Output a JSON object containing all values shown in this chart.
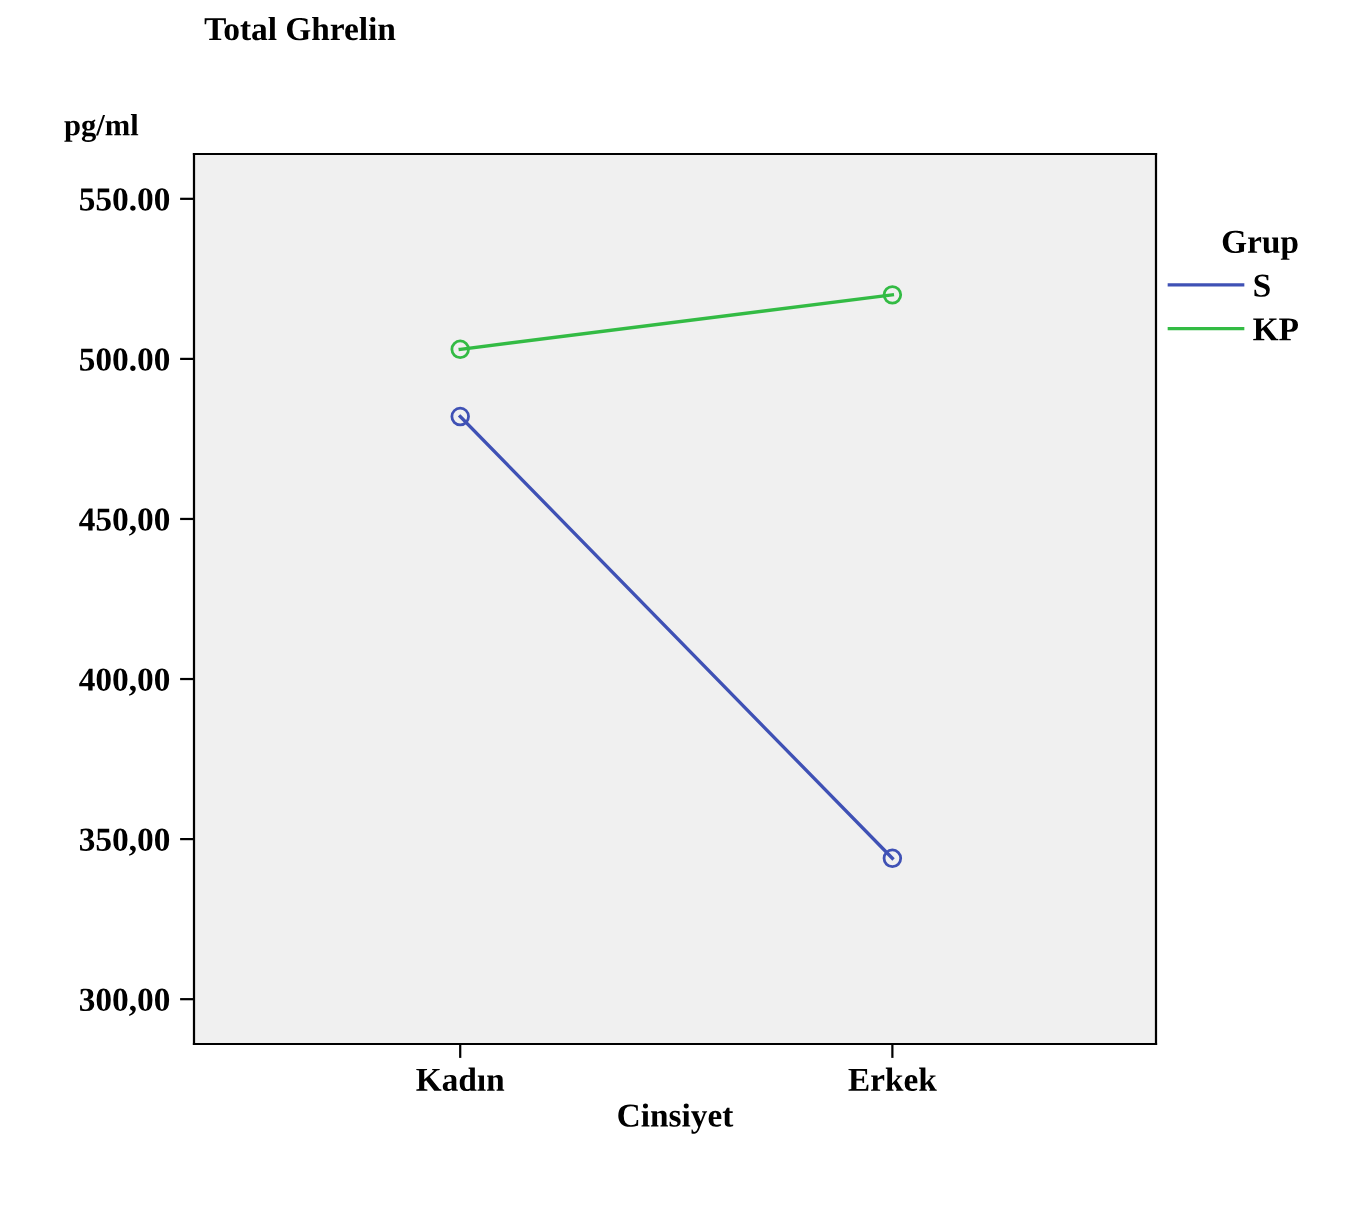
{
  "chart_data": {
    "type": "line",
    "title": "Total Ghrelin",
    "ylabel": "pg/ml",
    "xlabel": "Cinsiyet",
    "legend_title": "Grup",
    "categories": [
      "Kadın",
      "Erkek"
    ],
    "series": [
      {
        "name": "S",
        "color": "#3f51b5",
        "values": [
          482,
          344
        ]
      },
      {
        "name": "KP",
        "color": "#33bb44",
        "values": [
          503,
          520
        ]
      }
    ],
    "ylim": [
      286,
      564
    ],
    "yticks": [
      {
        "value": 300,
        "label": "300,00"
      },
      {
        "value": 350,
        "label": "350,00"
      },
      {
        "value": 400,
        "label": "400,00"
      },
      {
        "value": 450,
        "label": "450,00"
      },
      {
        "value": 500,
        "label": "500.00"
      },
      {
        "value": 550,
        "label": "550.00"
      }
    ],
    "grid": false,
    "legend": "right",
    "marker": "circle",
    "line_style": "solid"
  }
}
